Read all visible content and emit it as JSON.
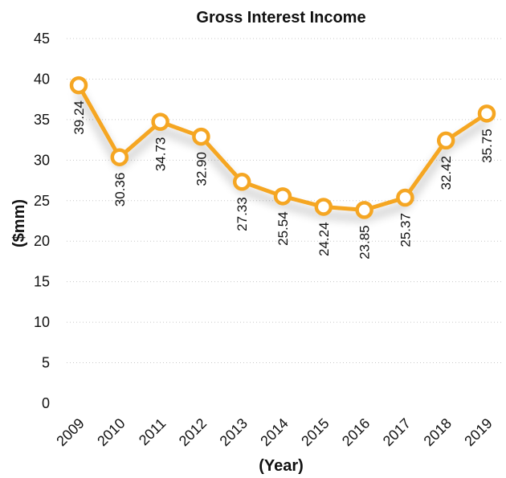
{
  "chart_data": {
    "type": "line",
    "title": "Gross Interest Income",
    "xlabel": "(Year)",
    "ylabel": "($mm)",
    "categories": [
      "2009",
      "2010",
      "2011",
      "2012",
      "2013",
      "2014",
      "2015",
      "2016",
      "2017",
      "2018",
      "2019"
    ],
    "series": [
      {
        "values": [
          39.24,
          30.36,
          34.73,
          32.9,
          27.33,
          25.54,
          24.24,
          23.85,
          25.37,
          32.42,
          35.75
        ],
        "labels": [
          "39.24",
          "30.36",
          "34.73",
          "32.90",
          "27.33",
          "25.54",
          "24.24",
          "23.85",
          "25.37",
          "32.42",
          "35.75"
        ]
      }
    ],
    "ylim": [
      0,
      45
    ],
    "yticks": [
      "0",
      "5",
      "10",
      "15",
      "20",
      "25",
      "30",
      "35",
      "40",
      "45"
    ],
    "grid": true,
    "legend": "none",
    "line_color": "#F5A623",
    "marker_fill": "#FFFFFF"
  }
}
